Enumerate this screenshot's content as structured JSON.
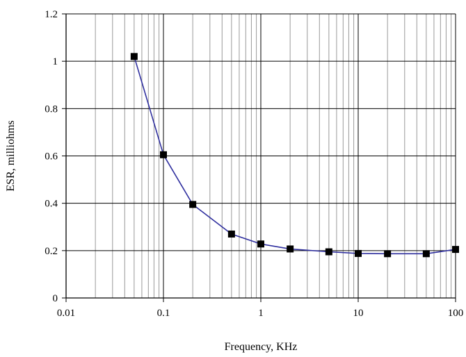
{
  "chart_data": {
    "type": "scatter",
    "title": "",
    "xlabel": "Frequency, KHz",
    "ylabel": "ESR, milliohms",
    "xscale": "log",
    "xlim": [
      0.01,
      100
    ],
    "ylim": [
      0,
      1.2
    ],
    "x_ticks": [
      0.01,
      0.1,
      1,
      10,
      100
    ],
    "x_tick_labels": [
      "0.01",
      "0.1",
      "1",
      "10",
      "100"
    ],
    "y_ticks": [
      0,
      0.2,
      0.4,
      0.6,
      0.8,
      1,
      1.2
    ],
    "y_tick_labels": [
      "0",
      "0.2",
      "0.4",
      "0.6",
      "0.8",
      "1",
      "1.2"
    ],
    "grid": true,
    "legend": "none",
    "series": [
      {
        "x": [
          0.05,
          0.1,
          0.2,
          0.5,
          1,
          2,
          5,
          10,
          20,
          50,
          100
        ],
        "y": [
          1.02,
          0.605,
          0.395,
          0.27,
          0.228,
          0.207,
          0.195,
          0.188,
          0.187,
          0.187,
          0.205
        ],
        "line_color": "#2e2e9e",
        "marker": "square",
        "marker_color": "#000000"
      }
    ],
    "grid_color": "#000000",
    "minor_grid_color": "#999999"
  }
}
